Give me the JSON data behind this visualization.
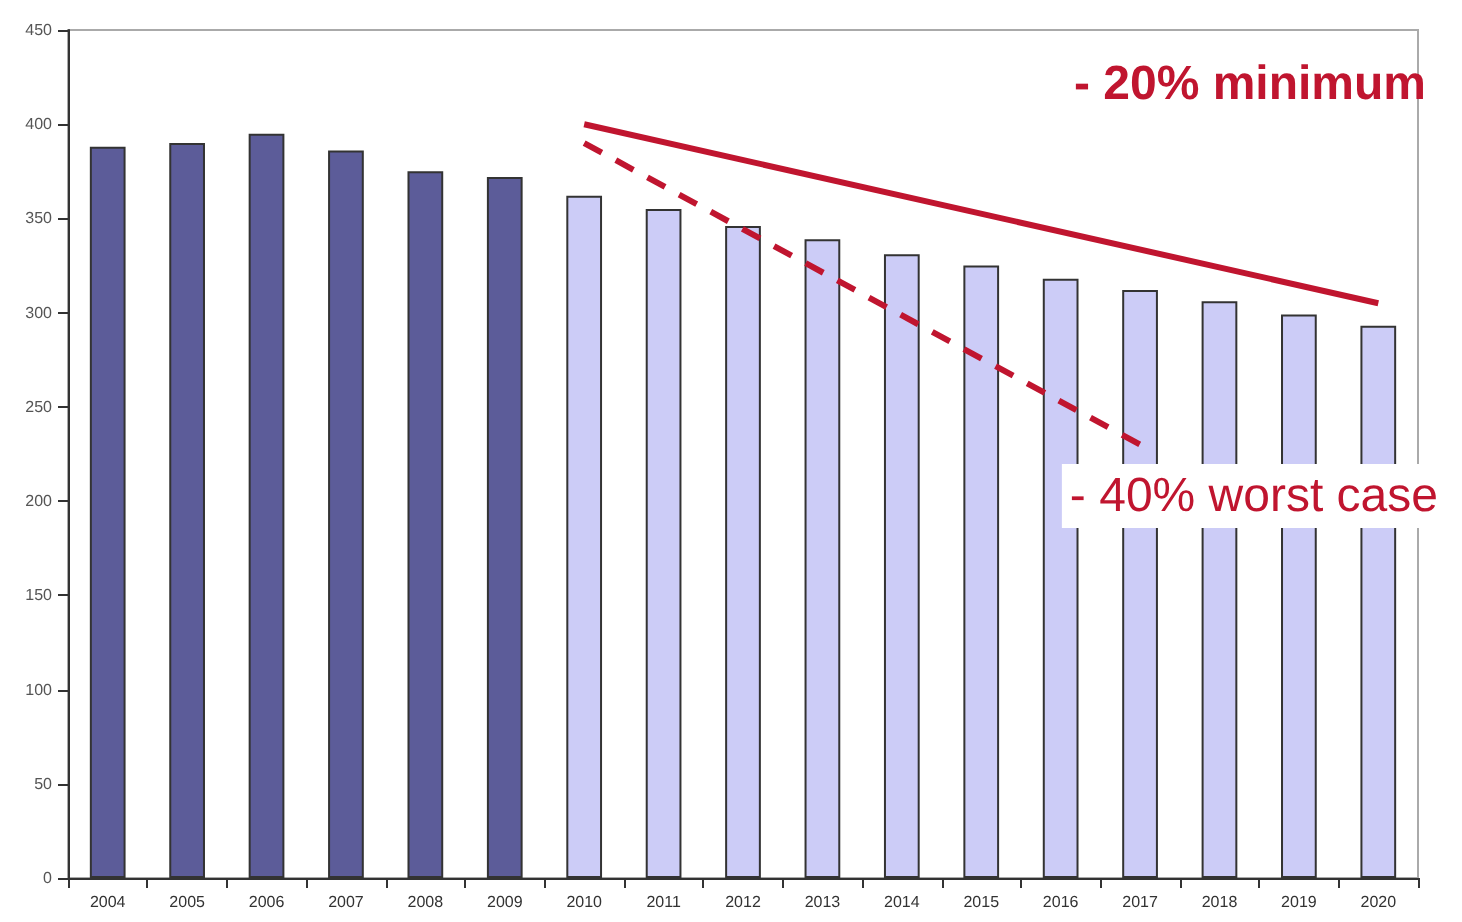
{
  "chart_data": {
    "type": "bar",
    "categories": [
      "2004",
      "2005",
      "2006",
      "2007",
      "2008",
      "2009",
      "2010",
      "2011",
      "2012",
      "2013",
      "2014",
      "2015",
      "2016",
      "2017",
      "2018",
      "2019",
      "2020"
    ],
    "values": [
      388,
      390,
      395,
      386,
      375,
      372,
      362,
      355,
      346,
      339,
      331,
      325,
      318,
      312,
      306,
      299,
      293
    ],
    "colors": [
      "#5c5c99",
      "#5c5c99",
      "#5c5c99",
      "#5c5c99",
      "#5c5c99",
      "#5c5c99",
      "#ccccf7",
      "#ccccf7",
      "#ccccf7",
      "#ccccf7",
      "#ccccf7",
      "#ccccf7",
      "#ccccf7",
      "#ccccf7",
      "#ccccf7",
      "#ccccf7",
      "#ccccf7"
    ],
    "series": [
      {
        "type": "line",
        "color": "#c0152f",
        "line_style": "solid",
        "values": [
          null,
          null,
          null,
          null,
          null,
          null,
          400,
          null,
          null,
          null,
          null,
          null,
          null,
          null,
          null,
          null,
          305
        ]
      },
      {
        "type": "line",
        "color": "#c0152f",
        "line_style": "dashed",
        "values": [
          null,
          null,
          null,
          null,
          null,
          null,
          390,
          null,
          null,
          null,
          null,
          null,
          null,
          230,
          null,
          null,
          null
        ]
      }
    ],
    "ylim": [
      0,
      450
    ],
    "yticks": [
      0,
      50,
      100,
      150,
      200,
      250,
      300,
      350,
      400,
      450
    ],
    "grid": false,
    "marker": "none",
    "annotations": [
      "- 20% minimum",
      "- 40% worst case"
    ]
  }
}
